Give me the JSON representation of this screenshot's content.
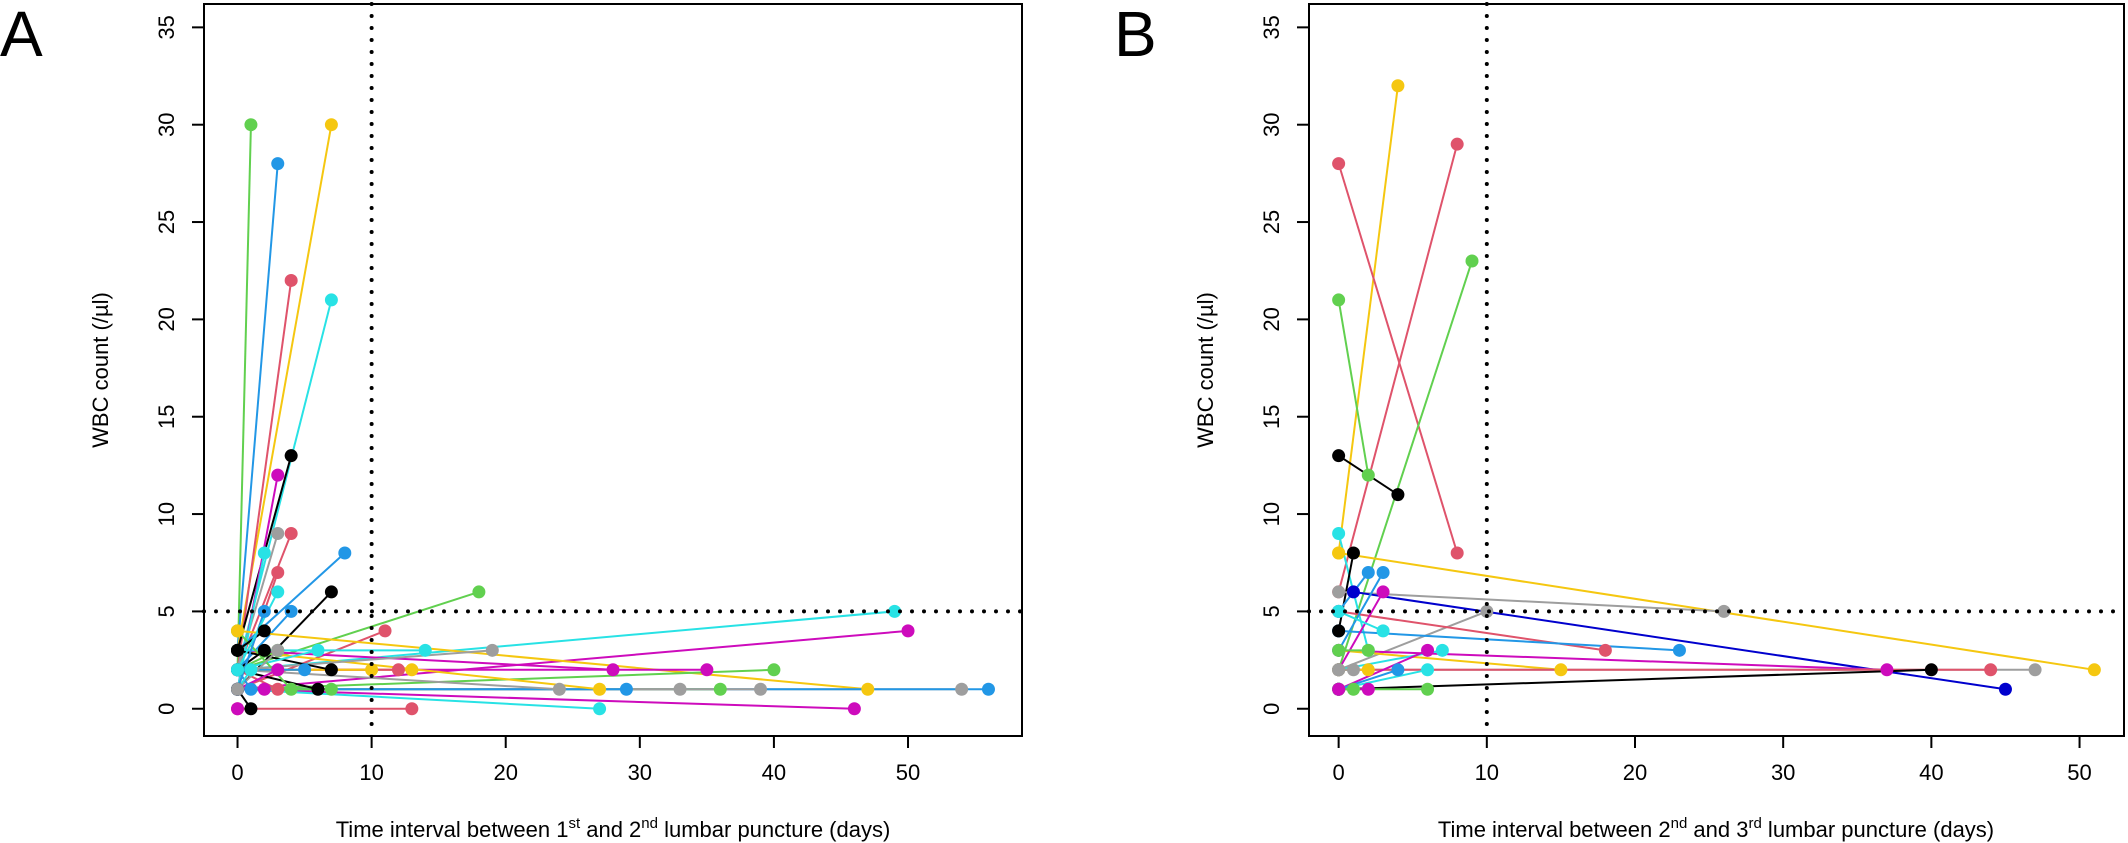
{
  "chart_data": [
    {
      "type": "scatter",
      "panel_label": "A",
      "xlabel": {
        "pre": "Time interval between 1",
        "sup1": "st",
        "mid": " and 2",
        "sup2": "nd",
        "post": " lumbar puncture (days)"
      },
      "ylabel": "WBC count (/µl)",
      "xlim": [
        -2.5,
        58.5
      ],
      "ylim": [
        -1.4,
        36.2
      ],
      "xticks": [
        0,
        10,
        20,
        30,
        40,
        50
      ],
      "yticks": [
        0,
        5,
        10,
        15,
        20,
        25,
        30,
        35
      ],
      "ref_vline_x": 10,
      "ref_hline_y": 5,
      "grid": false,
      "segments": [
        {
          "color": "#61D04F",
          "x1": 0,
          "y1": 2,
          "x2": 1,
          "y2": 30
        },
        {
          "color": "#2297E6",
          "x1": 0,
          "y1": 3,
          "x2": 3,
          "y2": 28
        },
        {
          "color": "#F5C710",
          "x1": 0,
          "y1": 3,
          "x2": 7,
          "y2": 30
        },
        {
          "color": "#DF536B",
          "x1": 0,
          "y1": 2,
          "x2": 4,
          "y2": 22
        },
        {
          "color": "#28E2E5",
          "x1": 0,
          "y1": 2,
          "x2": 7,
          "y2": 21
        },
        {
          "color": "#000000",
          "x1": 0,
          "y1": 3,
          "x2": 4,
          "y2": 13
        },
        {
          "color": "#CD0BBC",
          "x1": 0,
          "y1": 1,
          "x2": 3,
          "y2": 12
        },
        {
          "color": "#DF536B",
          "x1": 0,
          "y1": 2,
          "x2": 4,
          "y2": 9
        },
        {
          "color": "#9E9E9E",
          "x1": 0,
          "y1": 2,
          "x2": 3,
          "y2": 9
        },
        {
          "color": "#2297E6",
          "x1": 0,
          "y1": 3,
          "x2": 8,
          "y2": 8
        },
        {
          "color": "#28E2E5",
          "x1": 0,
          "y1": 1,
          "x2": 2,
          "y2": 8
        },
        {
          "color": "#DF536B",
          "x1": 0,
          "y1": 1,
          "x2": 3,
          "y2": 7
        },
        {
          "color": "#000000",
          "x1": 0,
          "y1": 1,
          "x2": 7,
          "y2": 6
        },
        {
          "color": "#61D04F",
          "x1": 0,
          "y1": 2,
          "x2": 18,
          "y2": 6
        },
        {
          "color": "#28E2E5",
          "x1": 0,
          "y1": 2,
          "x2": 49,
          "y2": 5
        },
        {
          "color": "#2297E6",
          "x1": 0,
          "y1": 2,
          "x2": 4,
          "y2": 5
        },
        {
          "color": "#CD0BBC",
          "x1": 0,
          "y1": 1,
          "x2": 50,
          "y2": 4
        },
        {
          "color": "#DF536B",
          "x1": 0,
          "y1": 1,
          "x2": 11,
          "y2": 4
        },
        {
          "color": "#F5C710",
          "x1": 0,
          "y1": 4,
          "x2": 47,
          "y2": 1
        },
        {
          "color": "#9E9E9E",
          "x1": 0,
          "y1": 1,
          "x2": 54,
          "y2": 1
        },
        {
          "color": "#2297E6",
          "x1": 0,
          "y1": 1,
          "x2": 56,
          "y2": 1
        },
        {
          "color": "#CD0BBC",
          "x1": 0,
          "y1": 1,
          "x2": 46,
          "y2": 0
        },
        {
          "color": "#61D04F",
          "x1": 0,
          "y1": 1,
          "x2": 40,
          "y2": 2
        },
        {
          "color": "#CD0BBC",
          "x1": 0,
          "y1": 2,
          "x2": 35,
          "y2": 2
        },
        {
          "color": "#61D04F",
          "x1": 0,
          "y1": 1,
          "x2": 36,
          "y2": 1
        },
        {
          "color": "#9E9E9E",
          "x1": 0,
          "y1": 1,
          "x2": 39,
          "y2": 1
        },
        {
          "color": "#9E9E9E",
          "x1": 0,
          "y1": 1,
          "x2": 33,
          "y2": 1
        },
        {
          "color": "#2297E6",
          "x1": 0,
          "y1": 1,
          "x2": 29,
          "y2": 1
        },
        {
          "color": "#28E2E5",
          "x1": 0,
          "y1": 1,
          "x2": 27,
          "y2": 0
        },
        {
          "color": "#F5C710",
          "x1": 0,
          "y1": 3,
          "x2": 27,
          "y2": 1
        },
        {
          "color": "#CD0BBC",
          "x1": 0,
          "y1": 3,
          "x2": 28,
          "y2": 2
        },
        {
          "color": "#9E9E9E",
          "x1": 0,
          "y1": 2,
          "x2": 24,
          "y2": 1
        },
        {
          "color": "#9E9E9E",
          "x1": 0,
          "y1": 2,
          "x2": 19,
          "y2": 3
        },
        {
          "color": "#28E2E5",
          "x1": 0,
          "y1": 3,
          "x2": 14,
          "y2": 3
        },
        {
          "color": "#F5C710",
          "x1": 0,
          "y1": 2,
          "x2": 13,
          "y2": 2
        },
        {
          "color": "#DF536B",
          "x1": 0,
          "y1": 0,
          "x2": 13,
          "y2": 0
        },
        {
          "color": "#DF536B",
          "x1": 0,
          "y1": 2,
          "x2": 12,
          "y2": 2
        },
        {
          "color": "#F5C710",
          "x1": 0,
          "y1": 2,
          "x2": 10,
          "y2": 2
        },
        {
          "color": "#61D04F",
          "x1": 0,
          "y1": 1,
          "x2": 7,
          "y2": 1
        },
        {
          "color": "#000000",
          "x1": 0,
          "y1": 3,
          "x2": 7,
          "y2": 2
        },
        {
          "color": "#000000",
          "x1": 0,
          "y1": 2,
          "x2": 6,
          "y2": 1
        },
        {
          "color": "#28E2E5",
          "x1": 0,
          "y1": 2,
          "x2": 6,
          "y2": 3
        },
        {
          "color": "#2297E6",
          "x1": 0,
          "y1": 2,
          "x2": 5,
          "y2": 2
        },
        {
          "color": "#61D04F",
          "x1": 0,
          "y1": 4,
          "x2": 4,
          "y2": 1
        },
        {
          "color": "#DF536B",
          "x1": 0,
          "y1": 2,
          "x2": 3,
          "y2": 1
        },
        {
          "color": "#CD0BBC",
          "x1": 0,
          "y1": 1,
          "x2": 3,
          "y2": 2
        },
        {
          "color": "#61D04F",
          "x1": 0,
          "y1": 2,
          "x2": 3,
          "y2": 3
        },
        {
          "color": "#9E9E9E",
          "x1": 0,
          "y1": 1,
          "x2": 3,
          "y2": 3
        },
        {
          "color": "#000000",
          "x1": 0,
          "y1": 2,
          "x2": 2,
          "y2": 3
        },
        {
          "color": "#000000",
          "x1": 0,
          "y1": 3,
          "x2": 2,
          "y2": 4
        },
        {
          "color": "#2297E6",
          "x1": 0,
          "y1": 1,
          "x2": 2,
          "y2": 5
        },
        {
          "color": "#28E2E5",
          "x1": 0,
          "y1": 2,
          "x2": 3,
          "y2": 6
        },
        {
          "color": "#CD0BBC",
          "x1": 0,
          "y1": 1,
          "x2": 2,
          "y2": 1
        },
        {
          "color": "#2297E6",
          "x1": 0,
          "y1": 2,
          "x2": 1,
          "y2": 1
        },
        {
          "color": "#28E2E5",
          "x1": 0,
          "y1": 1,
          "x2": 1,
          "y2": 2
        },
        {
          "color": "#000000",
          "x1": 0,
          "y1": 1,
          "x2": 1,
          "y2": 0
        }
      ],
      "points": [
        {
          "color": "#F5C710",
          "x": 0,
          "y": 4
        },
        {
          "color": "#000000",
          "x": 0,
          "y": 3
        },
        {
          "color": "#28E2E5",
          "x": 0,
          "y": 2
        },
        {
          "color": "#9E9E9E",
          "x": 0,
          "y": 1
        },
        {
          "color": "#CD0BBC",
          "x": 0,
          "y": 0
        }
      ]
    },
    {
      "type": "scatter",
      "panel_label": "B",
      "xlabel": {
        "pre": "Time interval between 2",
        "sup1": "nd",
        "mid": " and 3",
        "sup2": "rd",
        "post": " lumbar puncture (days)"
      },
      "ylabel": "WBC count (/µl)",
      "xlim": [
        -2.0,
        53.0
      ],
      "ylim": [
        -1.4,
        36.2
      ],
      "xticks": [
        0,
        10,
        20,
        30,
        40,
        50
      ],
      "yticks": [
        0,
        5,
        10,
        15,
        20,
        25,
        30,
        35
      ],
      "ref_vline_x": 10,
      "ref_hline_y": 5,
      "grid": false,
      "segments": [
        {
          "color": "#F5C710",
          "x1": 0,
          "y1": 8,
          "x2": 4,
          "y2": 32
        },
        {
          "color": "#DF536B",
          "x1": 0,
          "y1": 28,
          "x2": 8,
          "y2": 8
        },
        {
          "color": "#DF536B",
          "x1": 0,
          "y1": 6,
          "x2": 8,
          "y2": 29
        },
        {
          "color": "#61D04F",
          "x1": 0,
          "y1": 2,
          "x2": 9,
          "y2": 23
        },
        {
          "color": "#61D04F",
          "x1": 0,
          "y1": 21,
          "x2": 2,
          "y2": 12
        },
        {
          "color": "#000000",
          "x1": 0,
          "y1": 13,
          "x2": 4,
          "y2": 11
        },
        {
          "color": "#28E2E5",
          "x1": 0,
          "y1": 9,
          "x2": 2,
          "y2": 3
        },
        {
          "color": "#000000",
          "x1": 0,
          "y1": 4,
          "x2": 1,
          "y2": 8
        },
        {
          "color": "#F5C710",
          "x1": 0,
          "y1": 8,
          "x2": 51,
          "y2": 2
        },
        {
          "color": "#9E9E9E",
          "x1": 0,
          "y1": 6,
          "x2": 26,
          "y2": 5
        },
        {
          "color": "#9E9E9E",
          "x1": 0,
          "y1": 2,
          "x2": 10,
          "y2": 5
        },
        {
          "color": "#0000CD",
          "x1": 1,
          "y1": 6,
          "x2": 45,
          "y2": 1
        },
        {
          "color": "#CD0BBC",
          "x1": 0,
          "y1": 3,
          "x2": 37,
          "y2": 2
        },
        {
          "color": "#DF536B",
          "x1": 0,
          "y1": 5,
          "x2": 18,
          "y2": 3
        },
        {
          "color": "#2297E6",
          "x1": 0,
          "y1": 4,
          "x2": 23,
          "y2": 3
        },
        {
          "color": "#F5C710",
          "x1": 0,
          "y1": 3,
          "x2": 15,
          "y2": 2
        },
        {
          "color": "#9E9E9E",
          "x1": 0,
          "y1": 2,
          "x2": 47,
          "y2": 2
        },
        {
          "color": "#DF536B",
          "x1": 0,
          "y1": 2,
          "x2": 44,
          "y2": 2
        },
        {
          "color": "#000000",
          "x1": 0,
          "y1": 1,
          "x2": 40,
          "y2": 2
        },
        {
          "color": "#2297E6",
          "x1": 0,
          "y1": 5,
          "x2": 2,
          "y2": 7
        },
        {
          "color": "#2297E6",
          "x1": 0,
          "y1": 3,
          "x2": 3,
          "y2": 7
        },
        {
          "color": "#CD0BBC",
          "x1": 0,
          "y1": 2,
          "x2": 3,
          "y2": 6
        },
        {
          "color": "#28E2E5",
          "x1": 0,
          "y1": 5,
          "x2": 3,
          "y2": 4
        },
        {
          "color": "#28E2E5",
          "x1": 0,
          "y1": 2,
          "x2": 7,
          "y2": 3
        },
        {
          "color": "#CD0BBC",
          "x1": 0,
          "y1": 1,
          "x2": 6,
          "y2": 3
        },
        {
          "color": "#28E2E5",
          "x1": 0,
          "y1": 1,
          "x2": 6,
          "y2": 2
        },
        {
          "color": "#61D04F",
          "x1": 0,
          "y1": 1,
          "x2": 6,
          "y2": 1
        },
        {
          "color": "#2297E6",
          "x1": 0,
          "y1": 1,
          "x2": 4,
          "y2": 2
        },
        {
          "color": "#CD0BBC",
          "x1": 0,
          "y1": 1,
          "x2": 2,
          "y2": 1
        },
        {
          "color": "#61D04F",
          "x1": 0,
          "y1": 3,
          "x2": 2,
          "y2": 3
        },
        {
          "color": "#F5C710",
          "x1": 0,
          "y1": 2,
          "x2": 2,
          "y2": 2
        },
        {
          "color": "#9E9E9E",
          "x1": 0,
          "y1": 2,
          "x2": 1,
          "y2": 2
        },
        {
          "color": "#61D04F",
          "x1": 0,
          "y1": 1,
          "x2": 1,
          "y2": 1
        }
      ],
      "points": [
        {
          "color": "#000000",
          "x": 0,
          "y": 4
        },
        {
          "color": "#9E9E9E",
          "x": 0,
          "y": 2
        },
        {
          "color": "#CD0BBC",
          "x": 0,
          "y": 1
        }
      ]
    }
  ]
}
